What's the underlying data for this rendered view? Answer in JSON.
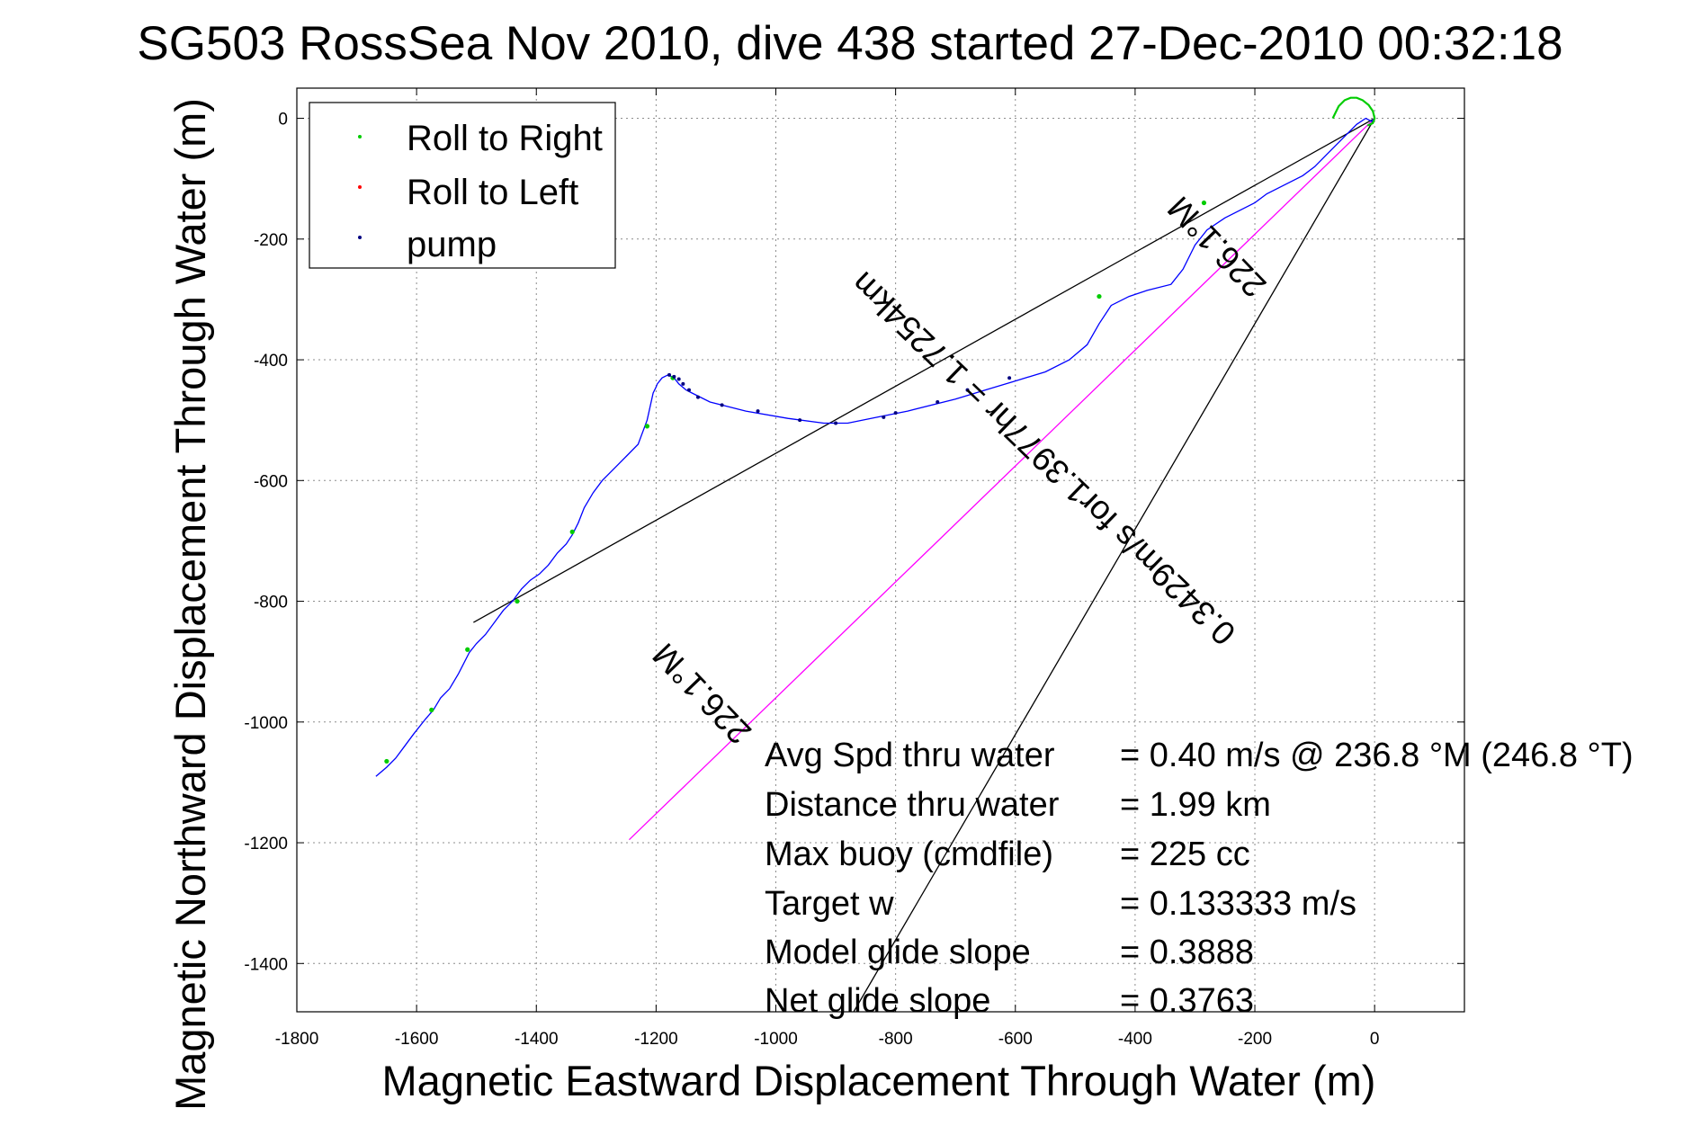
{
  "chart_data": {
    "type": "line",
    "title": "SG503 RossSea Nov 2010, dive 438 started 27-Dec-2010 00:32:18",
    "xlabel": "Magnetic Eastward Displacement Through Water (m)",
    "ylabel": "Magnetic Northward Displacement Through Water (m)",
    "xlim": [
      -1800,
      150
    ],
    "ylim": [
      -1480,
      50
    ],
    "xticks": [
      -1800,
      -1600,
      -1400,
      -1200,
      -1000,
      -800,
      -600,
      -400,
      -200,
      0
    ],
    "yticks": [
      0,
      -200,
      -400,
      -600,
      -800,
      -1000,
      -1200,
      -1400
    ],
    "x_tick_labels": [
      "-1800",
      "-1600",
      "-1400",
      "-1200",
      "-1000",
      "-800",
      "-600",
      "-400",
      "-200",
      "0"
    ],
    "y_tick_labels": [
      "0",
      "-200",
      "-400",
      "-600",
      "-800",
      "-1000",
      "-1200",
      "-1400"
    ],
    "grid": true,
    "legend_position": "top-left",
    "legend": [
      {
        "label": "Roll to Right",
        "color": "#00cc00"
      },
      {
        "label": "Roll to Left",
        "color": "#ff0000"
      },
      {
        "label": "pump",
        "color": "#000080"
      }
    ],
    "series": [
      {
        "name": "track",
        "color": "#0000ff",
        "x": [
          -1668,
          -1650,
          -1635,
          -1620,
          -1605,
          -1585,
          -1572,
          -1560,
          -1545,
          -1530,
          -1512,
          -1500,
          -1485,
          -1470,
          -1455,
          -1440,
          -1425,
          -1410,
          -1395,
          -1380,
          -1365,
          -1350,
          -1340,
          -1330,
          -1320,
          -1305,
          -1290,
          -1270,
          -1250,
          -1230,
          -1215,
          -1205,
          -1200,
          -1198,
          -1190,
          -1180,
          -1170,
          -1162,
          -1150,
          -1140,
          -1110,
          -1050,
          -980,
          -920,
          -880,
          -830,
          -780,
          -700,
          -650,
          -600,
          -550,
          -510,
          -480,
          -460,
          -440,
          -410,
          -380,
          -340,
          -320,
          -300,
          -280,
          -250,
          -220,
          -200,
          -180,
          -150,
          -120,
          -100,
          -80,
          -60,
          -45,
          -30,
          -15,
          -5,
          0
        ],
        "y": [
          -1090,
          -1075,
          -1060,
          -1040,
          -1020,
          -995,
          -980,
          -960,
          -945,
          -920,
          -885,
          -870,
          -855,
          -835,
          -815,
          -800,
          -780,
          -765,
          -755,
          -740,
          -720,
          -705,
          -690,
          -670,
          -645,
          -620,
          -600,
          -580,
          -560,
          -540,
          -500,
          -455,
          -445,
          -440,
          -430,
          -425,
          -430,
          -440,
          -450,
          -455,
          -470,
          -485,
          -497,
          -505,
          -505,
          -495,
          -485,
          -465,
          -450,
          -435,
          -420,
          -400,
          -375,
          -340,
          -310,
          -295,
          -285,
          -275,
          -250,
          -210,
          -185,
          -165,
          -150,
          -140,
          -125,
          -110,
          -95,
          -80,
          -60,
          -40,
          -25,
          -10,
          0,
          -5,
          0
        ]
      },
      {
        "name": "loop",
        "color": "#00cc00",
        "x": [
          -70,
          -60,
          -50,
          -40,
          -30,
          -20,
          -10,
          -3,
          0,
          -3,
          -12
        ],
        "y": [
          0,
          20,
          30,
          34,
          34,
          30,
          22,
          12,
          0,
          -8,
          -12
        ]
      }
    ],
    "roll_to_right_points": {
      "x": [
        -1650,
        -1575,
        -1515,
        -1432,
        -1340,
        -1215,
        -1172,
        -460,
        -285
      ],
      "y": [
        -1065,
        -980,
        -880,
        -800,
        -685,
        -510,
        -430,
        -295,
        -140
      ]
    },
    "pump_points": {
      "x": [
        -1178,
        -1170,
        -1162,
        -1155,
        -1145,
        -1130,
        -1090,
        -1030,
        -960,
        -900,
        -820,
        -800,
        -730,
        -680,
        -610
      ],
      "y": [
        -425,
        -428,
        -432,
        -440,
        -450,
        -462,
        -475,
        -485,
        -500,
        -505,
        -495,
        -488,
        -470,
        -450,
        -430
      ]
    },
    "reference_lines": [
      {
        "name": "black-line-1",
        "color": "#000000",
        "x": [
          -1505,
          0
        ],
        "y": [
          -835,
          0
        ]
      },
      {
        "name": "black-line-2",
        "color": "#000000",
        "x": [
          -870,
          0
        ],
        "y": [
          -1480,
          0
        ]
      },
      {
        "name": "magenta-line",
        "color": "#ff00ff",
        "x": [
          -1245,
          0
        ],
        "y": [
          -1195,
          0
        ]
      }
    ],
    "annotations": [
      {
        "text": "0.3429m/s for1.3977hr = 1.7254km",
        "x": -540,
        "y": -550,
        "rotation_deg": 224.1
      },
      {
        "text": "226.1°M",
        "x": -250,
        "y": -200,
        "rotation_deg": 226.1
      },
      {
        "text": "226.1°M",
        "x": -1110,
        "y": -940,
        "rotation_deg": 226.1
      }
    ],
    "stats": [
      {
        "label": "Avg Spd thru water",
        "value": "=  0.40 m/s @ 236.8 °M (246.8 °T)"
      },
      {
        "label": "Distance thru water",
        "value": "=  1.99 km"
      },
      {
        "label": "Max buoy (cmdfile)",
        "value": "= 225 cc"
      },
      {
        "label": "Target w",
        "value": "= 0.133333 m/s"
      },
      {
        "label": "Model glide slope",
        "value": "= 0.3888"
      },
      {
        "label": "Net glide slope",
        "value": "= 0.3763"
      }
    ]
  }
}
